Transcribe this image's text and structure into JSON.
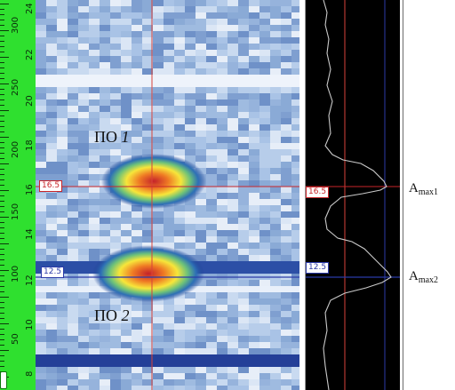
{
  "ruler": {
    "major_labels": [
      "300",
      "250",
      "200",
      "150",
      "100",
      "50"
    ],
    "minor_labels": [
      "24",
      "22",
      "20",
      "18",
      "16",
      "14",
      "12",
      "10",
      "8"
    ]
  },
  "cursor": {
    "level1": "16.5",
    "level2": "12.5",
    "color_level1": "#c8262a",
    "color_level2": "#2b3aa8",
    "color_vertical": "#d8423a"
  },
  "zones": {
    "zone1": {
      "prefix": "ПО",
      "number": "1"
    },
    "zone2": {
      "prefix": "ПО",
      "number": "2"
    }
  },
  "amplitude": {
    "max1": {
      "base": "A",
      "sub": "max1"
    },
    "max2": {
      "base": "A",
      "sub": "max2"
    }
  },
  "colors": {
    "ruler": "#2fe02f",
    "background_scan": "#9ab8de",
    "hot": "#c4222a",
    "profile_bg": "#000000",
    "profile_trace": "#c9c9c9"
  },
  "icons": [
    "scroll-handle-icon"
  ]
}
